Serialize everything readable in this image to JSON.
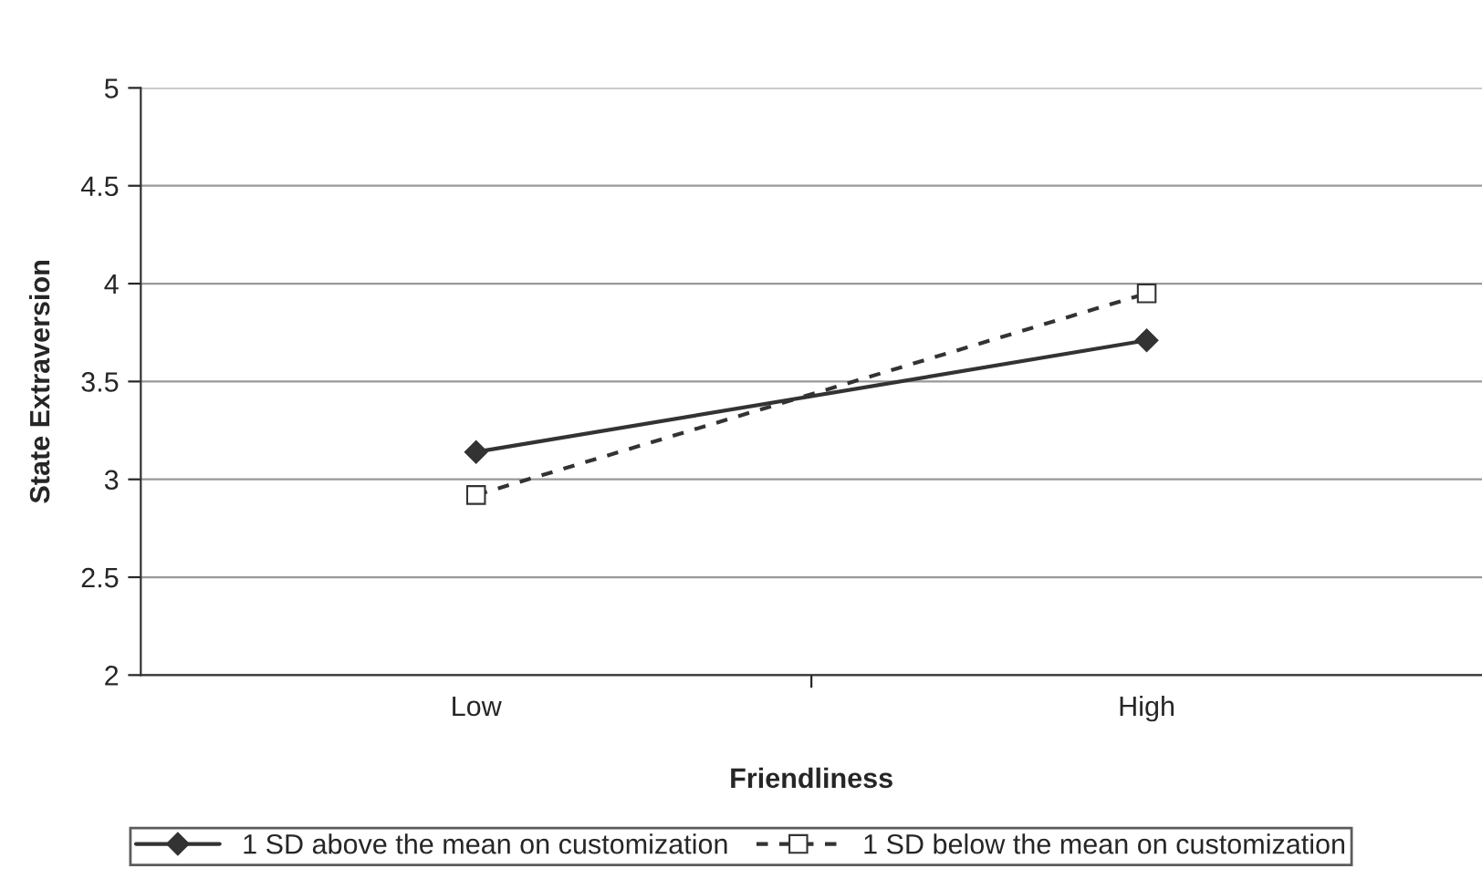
{
  "chart_data": {
    "type": "line",
    "xlabel": "Friendliness",
    "ylabel": "State Extraversion",
    "categories": [
      "Low",
      "High"
    ],
    "series": [
      {
        "name": "1 SD above the mean on customization",
        "color": "#333333",
        "values": [
          3.14,
          3.71
        ],
        "marker": "diamond",
        "line_style": "solid"
      },
      {
        "name": "1 SD below the mean on customization",
        "color": "#333333",
        "values": [
          2.92,
          3.95
        ],
        "marker": "square",
        "line_style": "dashed"
      }
    ],
    "ylim": [
      2,
      5
    ],
    "yticks": [
      2,
      2.5,
      3,
      3.5,
      4,
      4.5,
      5
    ],
    "grid": "y",
    "legend": "bottom"
  }
}
